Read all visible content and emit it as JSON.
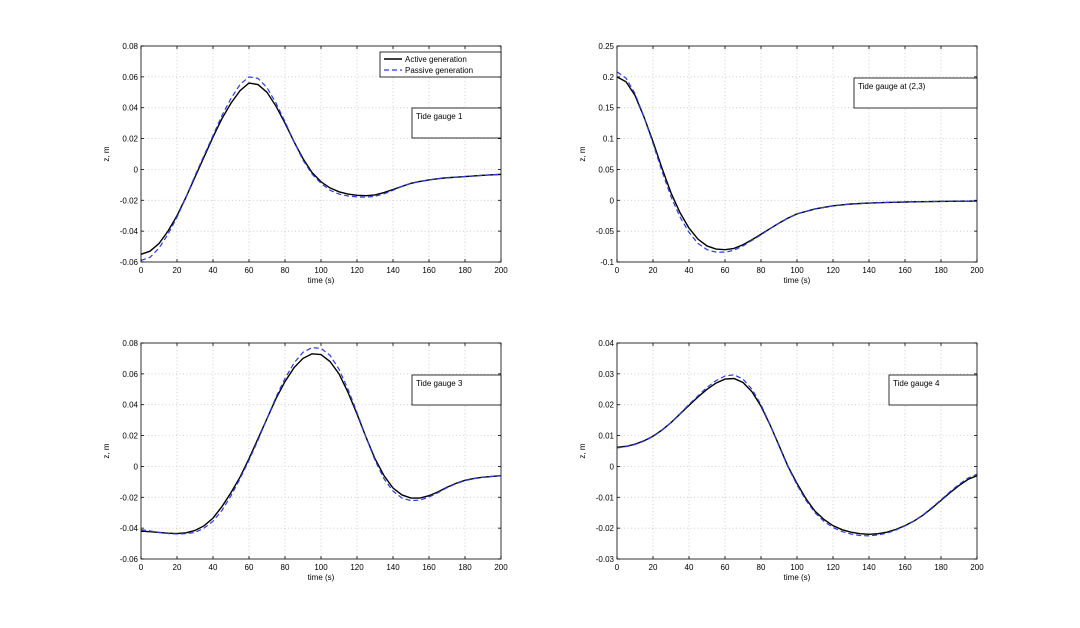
{
  "chart_data": [
    {
      "type": "line",
      "xlabel": "time (s)",
      "ylabel": "z, m",
      "xlim": [
        0,
        200
      ],
      "ylim": [
        -0.06,
        0.08
      ],
      "xticks": [
        0,
        20,
        40,
        60,
        80,
        100,
        120,
        140,
        160,
        180,
        200
      ],
      "yticks": [
        -0.06,
        -0.04,
        -0.02,
        0,
        0.02,
        0.04,
        0.06,
        0.08
      ],
      "xtick_labels": [
        "0",
        "20",
        "40",
        "60",
        "80",
        "100",
        "120",
        "140",
        "160",
        "180",
        "200"
      ],
      "ytick_labels": [
        "-0.06",
        "-0.04",
        "-0.02",
        "0",
        "0.02",
        "0.04",
        "0.06",
        "0.08"
      ],
      "grid": true,
      "annotation": "Tide gauge 1",
      "legend": {
        "placement": "top-right",
        "entries": [
          "Active generation",
          "Passive generation"
        ]
      },
      "series": [
        {
          "name": "Active generation",
          "color": "#000000",
          "x": [
            0,
            5,
            10,
            15,
            20,
            25,
            30,
            35,
            40,
            45,
            50,
            55,
            60,
            65,
            70,
            75,
            80,
            85,
            90,
            95,
            100,
            105,
            110,
            115,
            120,
            125,
            130,
            135,
            140,
            145,
            150,
            155,
            160,
            165,
            170,
            175,
            180,
            185,
            190,
            195,
            200
          ],
          "y": [
            -0.055,
            -0.053,
            -0.048,
            -0.04,
            -0.03,
            -0.018,
            -0.005,
            0.008,
            0.021,
            0.033,
            0.043,
            0.051,
            0.056,
            0.055,
            0.05,
            0.041,
            0.03,
            0.018,
            0.007,
            -0.002,
            -0.008,
            -0.012,
            -0.0145,
            -0.016,
            -0.0168,
            -0.017,
            -0.0165,
            -0.015,
            -0.013,
            -0.011,
            -0.009,
            -0.0078,
            -0.0068,
            -0.006,
            -0.0054,
            -0.005,
            -0.0046,
            -0.0042,
            -0.0038,
            -0.0035,
            -0.0032
          ]
        },
        {
          "name": "Passive generation",
          "color": "#2b3de0",
          "x": [
            0,
            5,
            10,
            15,
            20,
            25,
            30,
            35,
            40,
            45,
            50,
            55,
            60,
            65,
            70,
            75,
            80,
            85,
            90,
            95,
            100,
            105,
            110,
            115,
            120,
            125,
            130,
            135,
            140,
            145,
            150,
            155,
            160,
            165,
            170,
            175,
            180,
            185,
            190,
            195,
            200
          ],
          "y": [
            -0.059,
            -0.057,
            -0.051,
            -0.042,
            -0.031,
            -0.018,
            -0.004,
            0.009,
            0.022,
            0.035,
            0.046,
            0.055,
            0.06,
            0.059,
            0.053,
            0.043,
            0.031,
            0.018,
            0.006,
            -0.003,
            -0.009,
            -0.0135,
            -0.016,
            -0.0172,
            -0.0178,
            -0.018,
            -0.0174,
            -0.0158,
            -0.0135,
            -0.011,
            -0.009,
            -0.0078,
            -0.0068,
            -0.006,
            -0.0054,
            -0.005,
            -0.0046,
            -0.0042,
            -0.0038,
            -0.0035,
            -0.0032
          ]
        }
      ]
    },
    {
      "type": "line",
      "xlabel": "time (s)",
      "ylabel": "z, m",
      "xlim": [
        0,
        200
      ],
      "ylim": [
        -0.1,
        0.25
      ],
      "xticks": [
        0,
        20,
        40,
        60,
        80,
        100,
        120,
        140,
        160,
        180,
        200
      ],
      "yticks": [
        -0.1,
        -0.05,
        0,
        0.05,
        0.1,
        0.15,
        0.2,
        0.25
      ],
      "xtick_labels": [
        "0",
        "20",
        "40",
        "60",
        "80",
        "100",
        "120",
        "140",
        "160",
        "180",
        "200"
      ],
      "ytick_labels": [
        "-0.1",
        "-0.05",
        "0",
        "0.05",
        "0.1",
        "0.15",
        "0.2",
        "0.25"
      ],
      "grid": true,
      "annotation": "Tide gauge at (2,3)",
      "series": [
        {
          "name": "Active generation",
          "color": "#000000",
          "x": [
            0,
            5,
            10,
            15,
            20,
            25,
            30,
            35,
            40,
            45,
            50,
            55,
            60,
            65,
            70,
            75,
            80,
            85,
            90,
            95,
            100,
            110,
            120,
            130,
            140,
            150,
            160,
            170,
            180,
            190,
            200
          ],
          "y": [
            0.2,
            0.192,
            0.17,
            0.135,
            0.095,
            0.052,
            0.012,
            -0.02,
            -0.045,
            -0.063,
            -0.074,
            -0.079,
            -0.08,
            -0.078,
            -0.072,
            -0.064,
            -0.055,
            -0.046,
            -0.037,
            -0.029,
            -0.022,
            -0.014,
            -0.009,
            -0.006,
            -0.0045,
            -0.0035,
            -0.0028,
            -0.0022,
            -0.0018,
            -0.0015,
            -0.0012
          ]
        },
        {
          "name": "Passive generation",
          "color": "#2b3de0",
          "x": [
            0,
            5,
            10,
            15,
            20,
            25,
            30,
            35,
            40,
            45,
            50,
            55,
            60,
            65,
            70,
            75,
            80,
            85,
            90,
            95,
            100,
            110,
            120,
            130,
            140,
            150,
            160,
            170,
            180,
            190,
            200
          ],
          "y": [
            0.208,
            0.198,
            0.173,
            0.135,
            0.092,
            0.047,
            0.006,
            -0.027,
            -0.052,
            -0.07,
            -0.08,
            -0.084,
            -0.084,
            -0.081,
            -0.074,
            -0.065,
            -0.056,
            -0.046,
            -0.037,
            -0.029,
            -0.022,
            -0.014,
            -0.009,
            -0.006,
            -0.0045,
            -0.0035,
            -0.0028,
            -0.0022,
            -0.0018,
            -0.0015,
            -0.0012
          ]
        }
      ]
    },
    {
      "type": "line",
      "xlabel": "time (s)",
      "ylabel": "z, m",
      "xlim": [
        0,
        200
      ],
      "ylim": [
        -0.06,
        0.08
      ],
      "xticks": [
        0,
        20,
        40,
        60,
        80,
        100,
        120,
        140,
        160,
        180,
        200
      ],
      "yticks": [
        -0.06,
        -0.04,
        -0.02,
        0,
        0.02,
        0.04,
        0.06,
        0.08
      ],
      "xtick_labels": [
        "0",
        "20",
        "40",
        "60",
        "80",
        "100",
        "120",
        "140",
        "160",
        "180",
        "200"
      ],
      "ytick_labels": [
        "-0.06",
        "-0.04",
        "-0.02",
        "0",
        "0.02",
        "0.04",
        "0.06",
        "0.08"
      ],
      "grid": true,
      "annotation": "Tide gauge 3",
      "series": [
        {
          "name": "Active generation",
          "color": "#000000",
          "x": [
            0,
            5,
            10,
            15,
            20,
            25,
            30,
            35,
            40,
            45,
            50,
            55,
            60,
            65,
            70,
            75,
            80,
            85,
            90,
            95,
            100,
            105,
            110,
            115,
            120,
            125,
            130,
            135,
            140,
            145,
            150,
            155,
            160,
            165,
            170,
            175,
            180,
            185,
            190,
            195,
            200
          ],
          "y": [
            -0.042,
            -0.0423,
            -0.0428,
            -0.0433,
            -0.0435,
            -0.043,
            -0.0415,
            -0.0385,
            -0.0335,
            -0.026,
            -0.017,
            -0.007,
            0.005,
            0.018,
            0.031,
            0.044,
            0.055,
            0.064,
            0.07,
            0.073,
            0.0725,
            0.068,
            0.06,
            0.048,
            0.034,
            0.019,
            0.005,
            -0.006,
            -0.014,
            -0.0185,
            -0.0205,
            -0.0205,
            -0.019,
            -0.0165,
            -0.0135,
            -0.011,
            -0.009,
            -0.0078,
            -0.007,
            -0.0065,
            -0.006
          ]
        },
        {
          "name": "Passive generation",
          "color": "#2b3de0",
          "x": [
            0,
            5,
            10,
            15,
            20,
            25,
            30,
            35,
            40,
            45,
            50,
            55,
            60,
            65,
            70,
            75,
            80,
            85,
            90,
            95,
            100,
            105,
            110,
            115,
            120,
            125,
            130,
            135,
            140,
            145,
            150,
            155,
            160,
            165,
            170,
            175,
            180,
            185,
            190,
            195,
            200
          ],
          "y": [
            -0.041,
            -0.0418,
            -0.0428,
            -0.0435,
            -0.0438,
            -0.0436,
            -0.0428,
            -0.04,
            -0.0355,
            -0.0285,
            -0.019,
            -0.008,
            0.004,
            0.017,
            0.031,
            0.045,
            0.057,
            0.067,
            0.074,
            0.077,
            0.0765,
            0.072,
            0.063,
            0.05,
            0.035,
            0.019,
            0.004,
            -0.008,
            -0.016,
            -0.0205,
            -0.0222,
            -0.0218,
            -0.0198,
            -0.017,
            -0.0138,
            -0.0112,
            -0.0092,
            -0.0079,
            -0.007,
            -0.0065,
            -0.006
          ]
        }
      ]
    },
    {
      "type": "line",
      "xlabel": "time (s)",
      "ylabel": "z, m",
      "xlim": [
        0,
        200
      ],
      "ylim": [
        -0.03,
        0.04
      ],
      "xticks": [
        0,
        20,
        40,
        60,
        80,
        100,
        120,
        140,
        160,
        180,
        200
      ],
      "yticks": [
        -0.03,
        -0.02,
        -0.01,
        0,
        0.01,
        0.02,
        0.03,
        0.04
      ],
      "xtick_labels": [
        "0",
        "20",
        "40",
        "60",
        "80",
        "100",
        "120",
        "140",
        "160",
        "180",
        "200"
      ],
      "ytick_labels": [
        "-0.03",
        "-0.02",
        "-0.01",
        "0",
        "0.01",
        "0.02",
        "0.03",
        "0.04"
      ],
      "grid": true,
      "annotation": "Tide gauge 4",
      "series": [
        {
          "name": "Active generation",
          "color": "#000000",
          "x": [
            0,
            5,
            10,
            15,
            20,
            25,
            30,
            35,
            40,
            45,
            50,
            55,
            60,
            65,
            70,
            75,
            80,
            85,
            90,
            95,
            100,
            105,
            110,
            115,
            120,
            125,
            130,
            135,
            140,
            145,
            150,
            155,
            160,
            165,
            170,
            175,
            180,
            185,
            190,
            195,
            200
          ],
          "y": [
            0.0062,
            0.0065,
            0.0072,
            0.0083,
            0.0098,
            0.0118,
            0.0142,
            0.017,
            0.0198,
            0.0225,
            0.025,
            0.027,
            0.0283,
            0.0285,
            0.0272,
            0.0242,
            0.0195,
            0.0135,
            0.0068,
            0.0,
            -0.0055,
            -0.0105,
            -0.0145,
            -0.0172,
            -0.0192,
            -0.0205,
            -0.0213,
            -0.0218,
            -0.022,
            -0.0218,
            -0.0213,
            -0.0204,
            -0.0192,
            -0.0177,
            -0.0158,
            -0.0135,
            -0.011,
            -0.0085,
            -0.0062,
            -0.0042,
            -0.003
          ]
        },
        {
          "name": "Passive generation",
          "color": "#2b3de0",
          "x": [
            0,
            5,
            10,
            15,
            20,
            25,
            30,
            35,
            40,
            45,
            50,
            55,
            60,
            65,
            70,
            75,
            80,
            85,
            90,
            95,
            100,
            105,
            110,
            115,
            120,
            125,
            130,
            135,
            140,
            145,
            150,
            155,
            160,
            165,
            170,
            175,
            180,
            185,
            190,
            195,
            200
          ],
          "y": [
            0.006,
            0.0064,
            0.0071,
            0.0082,
            0.0097,
            0.0117,
            0.0142,
            0.0171,
            0.0201,
            0.0229,
            0.0256,
            0.0278,
            0.0293,
            0.0297,
            0.0283,
            0.025,
            0.02,
            0.0136,
            0.0066,
            -0.0002,
            -0.006,
            -0.011,
            -0.015,
            -0.0178,
            -0.0198,
            -0.0211,
            -0.0219,
            -0.0224,
            -0.0225,
            -0.0222,
            -0.0216,
            -0.0206,
            -0.0193,
            -0.0177,
            -0.0157,
            -0.0133,
            -0.0108,
            -0.0082,
            -0.0058,
            -0.0038,
            -0.0025
          ]
        }
      ]
    }
  ]
}
